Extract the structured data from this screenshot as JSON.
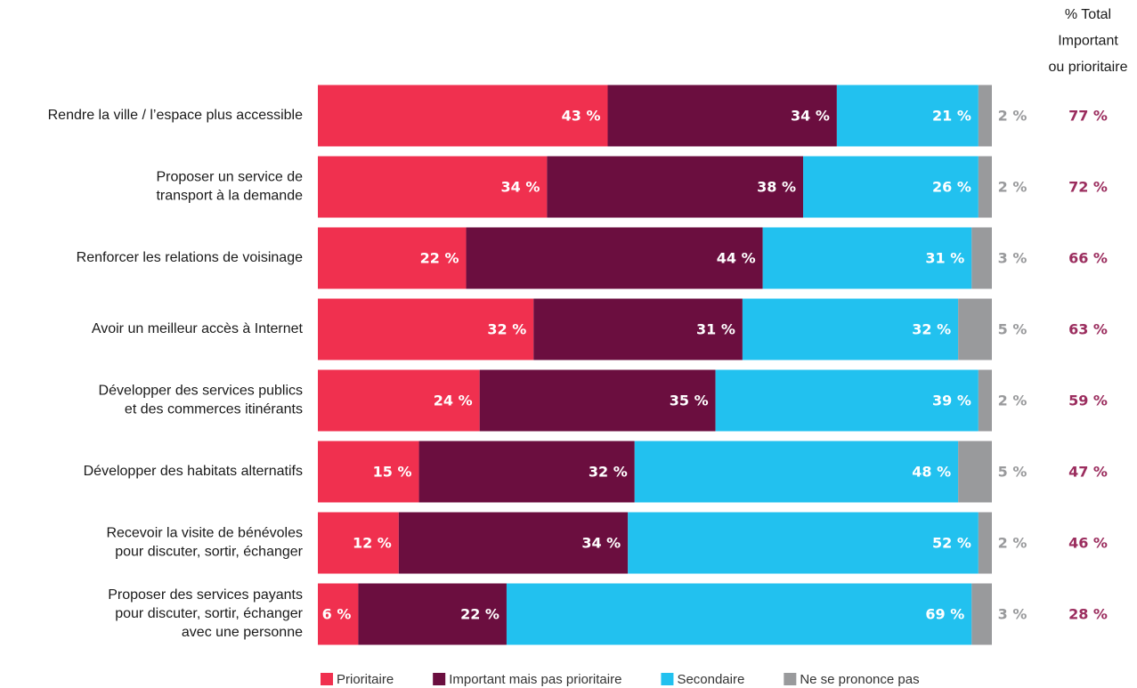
{
  "chart_data": {
    "type": "stacked-bar-horizontal",
    "categories": [
      [
        "Rendre la ville / l’espace plus accessible"
      ],
      [
        "Proposer un service de",
        "transport à la demande"
      ],
      [
        "Renforcer les relations de voisinage"
      ],
      [
        "Avoir un meilleur accès à Internet"
      ],
      [
        "Développer des services publics",
        "et des commerces itinérants"
      ],
      [
        "Développer des habitats alternatifs"
      ],
      [
        "Recevoir la visite de bénévoles",
        "pour discuter, sortir, échanger"
      ],
      [
        "Proposer des services payants",
        "pour discuter, sortir, échanger",
        "avec une personne"
      ]
    ],
    "xlim": [
      0,
      100
    ],
    "series": [
      {
        "name": "Prioritaire",
        "color": "#f0304f",
        "values": [
          43,
          34,
          22,
          32,
          24,
          15,
          12,
          6
        ],
        "value_labels": [
          "43 %",
          "34 %",
          "22 %",
          "32 %",
          "24 %",
          "15 %",
          "12 %",
          "6 %"
        ]
      },
      {
        "name": "Important mais pas prioritaire",
        "color": "#6b0e3f",
        "values": [
          34,
          38,
          44,
          31,
          35,
          32,
          34,
          22
        ],
        "value_labels": [
          "34 %",
          "38 %",
          "44 %",
          "31 %",
          "35 %",
          "32 %",
          "34 %",
          "22 %"
        ]
      },
      {
        "name": "Secondaire",
        "color": "#22c1ef",
        "values": [
          21,
          26,
          31,
          32,
          39,
          48,
          52,
          69
        ],
        "value_labels": [
          "21 %",
          "26 %",
          "31 %",
          "32 %",
          "39 %",
          "48 %",
          "52 %",
          "69 %"
        ]
      },
      {
        "name": "Ne se prononce pas",
        "color": "#999a9c",
        "values": [
          2,
          2,
          3,
          5,
          2,
          5,
          2,
          3
        ],
        "value_labels": [
          "2 %",
          "2 %",
          "3 %",
          "5 %",
          "2 %",
          "5 %",
          "2 %",
          "3 %"
        ]
      }
    ],
    "totals": {
      "title": [
        "% Total",
        "Important",
        "ou prioritaire"
      ],
      "color": "#9b2d5e",
      "values": [
        77,
        72,
        66,
        63,
        59,
        47,
        46,
        28
      ],
      "value_labels": [
        "77 %",
        "72 %",
        "66 %",
        "63 %",
        "59 %",
        "47 %",
        "46 %",
        "28 %"
      ]
    }
  }
}
